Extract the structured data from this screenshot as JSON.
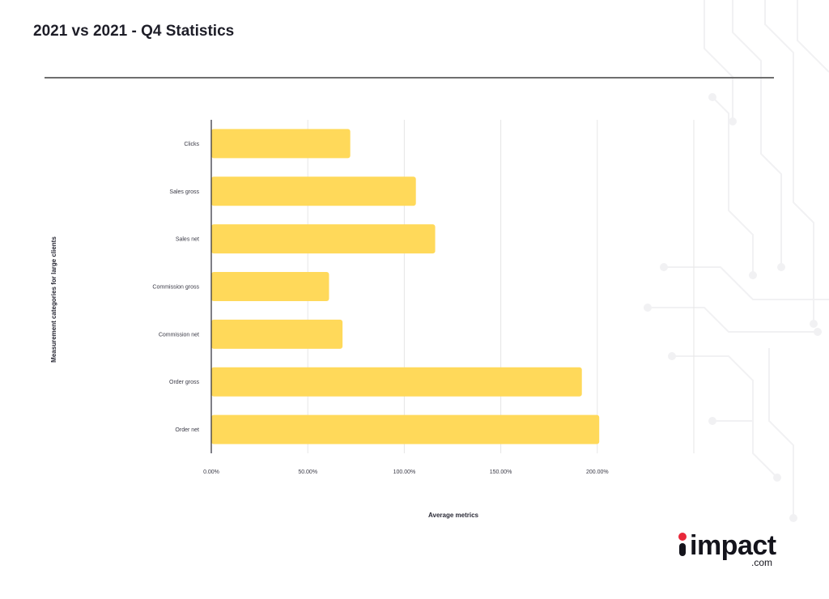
{
  "header": {
    "title": "2021 vs 2021 - Q4 Statistics"
  },
  "colors": {
    "bar": "#FFD95A",
    "grid": "#E6E6E6",
    "axis": "#2A2A36",
    "divider": "#6E6E6E"
  },
  "logo": {
    "word": "impact",
    "suffix": ".com"
  },
  "chart_data": {
    "type": "bar",
    "orientation": "horizontal",
    "title": "",
    "xlabel": "Average metrics",
    "ylabel": "Measurement categories for large clients",
    "categories": [
      "Clicks",
      "Sales gross",
      "Sales net",
      "Commission gross",
      "Commission net",
      "Order gross",
      "Order net"
    ],
    "values": [
      72,
      106,
      116,
      61,
      68,
      192,
      201
    ],
    "value_unit": "%",
    "xlim": [
      0,
      250
    ],
    "xticks": [
      "0.00%",
      "50.00%",
      "100.00%",
      "150.00%",
      "200.00%"
    ],
    "grid": true,
    "legend": "none"
  }
}
